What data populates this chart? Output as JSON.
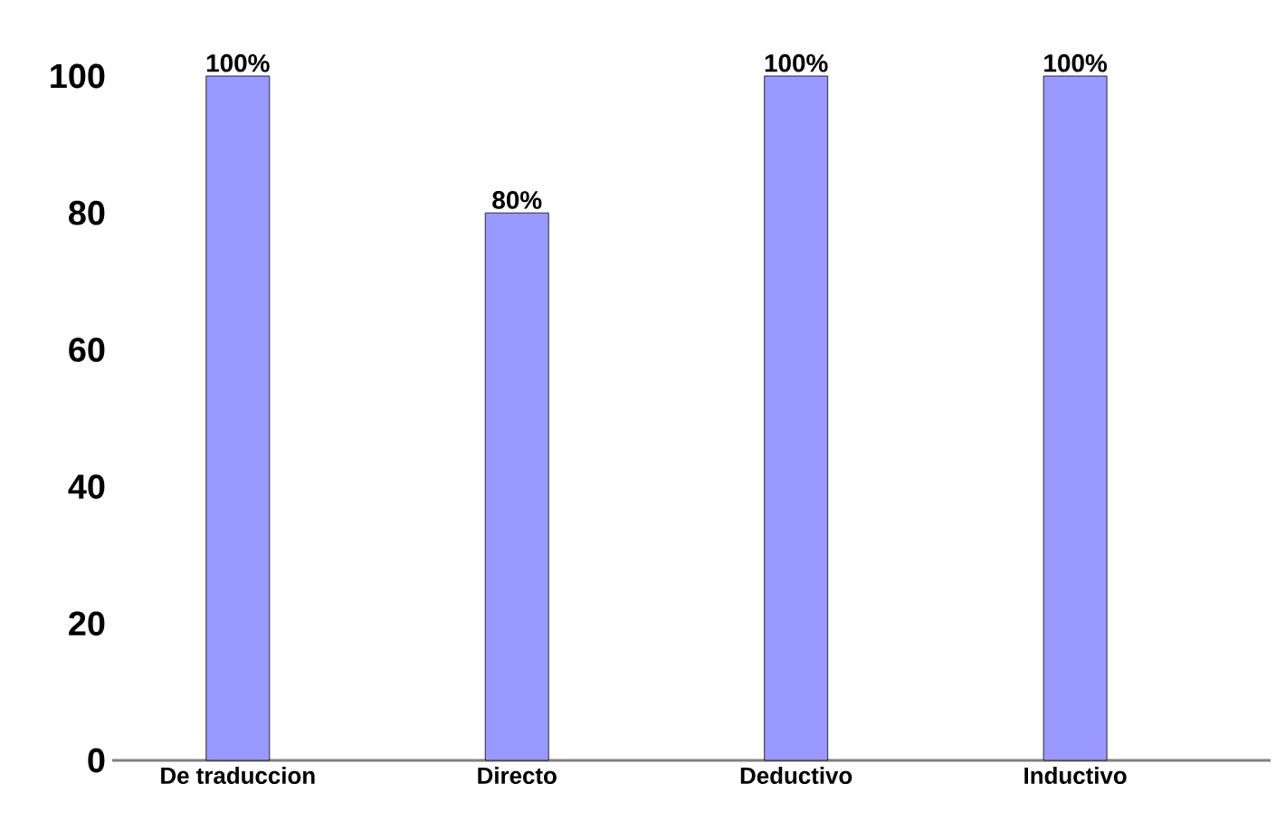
{
  "chart_data": {
    "type": "bar",
    "categories": [
      "De traduccion",
      "Directo",
      "Deductivo",
      "Inductivo"
    ],
    "values": [
      100,
      80,
      100,
      100
    ],
    "value_labels": [
      "100%",
      "80%",
      "100%",
      "100%"
    ],
    "color": "#9999ff",
    "ylim": [
      0,
      100
    ],
    "yticks": [
      0,
      20,
      40,
      60,
      80,
      100
    ]
  }
}
